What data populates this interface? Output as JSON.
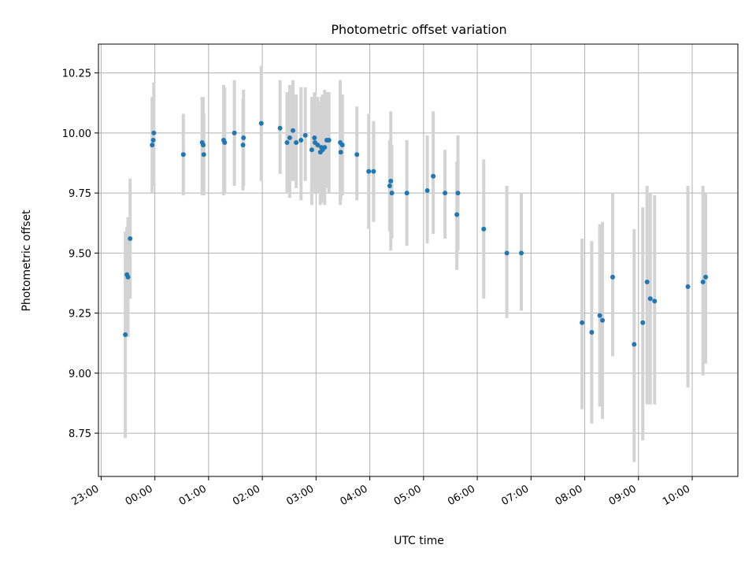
{
  "chart_data": {
    "type": "scatter",
    "title": "Photometric offset variation",
    "xlabel": "UTC time",
    "ylabel": "Photometric offset",
    "grid": true,
    "xlim": [
      -1.05,
      10.85
    ],
    "ylim": [
      8.57,
      10.37
    ],
    "x_ticks": [
      {
        "value": -1,
        "label": "23:00"
      },
      {
        "value": 0,
        "label": "00:00"
      },
      {
        "value": 1,
        "label": "01:00"
      },
      {
        "value": 2,
        "label": "02:00"
      },
      {
        "value": 3,
        "label": "03:00"
      },
      {
        "value": 4,
        "label": "04:00"
      },
      {
        "value": 5,
        "label": "05:00"
      },
      {
        "value": 6,
        "label": "06:00"
      },
      {
        "value": 7,
        "label": "07:00"
      },
      {
        "value": 8,
        "label": "08:00"
      },
      {
        "value": 9,
        "label": "09:00"
      },
      {
        "value": 10,
        "label": "10:00"
      }
    ],
    "y_ticks": [
      {
        "value": 8.75,
        "label": "8.75"
      },
      {
        "value": 9.0,
        "label": "9.00"
      },
      {
        "value": 9.25,
        "label": "9.25"
      },
      {
        "value": 9.5,
        "label": "9.50"
      },
      {
        "value": 9.75,
        "label": "9.75"
      },
      {
        "value": 10.0,
        "label": "10.00"
      },
      {
        "value": 10.25,
        "label": "10.25"
      }
    ],
    "colors": {
      "point": "#1f77b4",
      "errorbar": "#d3d3d3",
      "grid": "#b0b0b0"
    },
    "series": [
      {
        "x": [
          -0.55,
          -0.52,
          -0.5,
          -0.46,
          -0.05,
          -0.03,
          -0.02,
          0.53,
          0.88,
          0.9,
          0.91,
          1.28,
          1.3,
          1.48,
          1.64,
          1.65,
          1.98,
          2.33,
          2.46,
          2.51,
          2.57,
          2.63,
          2.72,
          2.8,
          2.92,
          2.97,
          2.98,
          3.03,
          3.08,
          3.1,
          3.12,
          3.16,
          3.2,
          3.24,
          3.45,
          3.46,
          3.49,
          3.76,
          3.98,
          4.07,
          4.37,
          4.39,
          4.41,
          4.69,
          5.07,
          5.18,
          5.4,
          5.62,
          5.64,
          6.12,
          6.55,
          6.82,
          7.95,
          8.13,
          8.28,
          8.33,
          8.52,
          8.92,
          9.08,
          9.16,
          9.22,
          9.3,
          9.92,
          10.2,
          10.25
        ],
        "y": [
          9.16,
          9.41,
          9.4,
          9.56,
          9.95,
          9.97,
          10.0,
          9.91,
          9.96,
          9.95,
          9.91,
          9.97,
          9.96,
          10.0,
          9.95,
          9.98,
          10.04,
          10.02,
          9.96,
          9.98,
          10.01,
          9.96,
          9.97,
          9.99,
          9.93,
          9.98,
          9.96,
          9.95,
          9.92,
          9.94,
          9.93,
          9.94,
          9.97,
          9.97,
          9.96,
          9.92,
          9.95,
          9.91,
          9.84,
          9.84,
          9.78,
          9.8,
          9.75,
          9.75,
          9.76,
          9.82,
          9.75,
          9.66,
          9.75,
          9.6,
          9.5,
          9.5,
          9.21,
          9.17,
          9.24,
          9.22,
          9.4,
          9.12,
          9.21,
          9.38,
          9.31,
          9.3,
          9.36,
          9.38,
          9.4
        ],
        "err_low": [
          8.73,
          9.21,
          9.15,
          9.31,
          9.75,
          9.8,
          9.78,
          9.74,
          9.74,
          9.75,
          9.74,
          9.74,
          9.75,
          9.78,
          9.76,
          9.78,
          9.8,
          9.83,
          9.75,
          9.73,
          9.8,
          9.77,
          9.72,
          9.8,
          9.7,
          9.78,
          9.75,
          9.75,
          9.7,
          9.72,
          9.71,
          9.7,
          9.77,
          9.75,
          9.7,
          9.72,
          9.74,
          9.72,
          9.6,
          9.63,
          9.59,
          9.51,
          9.56,
          9.53,
          9.54,
          9.58,
          9.56,
          9.43,
          9.51,
          9.31,
          9.23,
          9.26,
          8.85,
          8.79,
          8.86,
          8.81,
          9.07,
          8.63,
          8.72,
          8.87,
          8.87,
          8.87,
          8.94,
          8.99,
          9.04
        ],
        "err_high": [
          9.59,
          9.61,
          9.65,
          9.81,
          10.15,
          10.14,
          10.21,
          10.08,
          10.15,
          10.15,
          10.08,
          10.2,
          10.19,
          10.22,
          10.14,
          10.18,
          10.28,
          10.22,
          10.17,
          10.2,
          10.22,
          10.16,
          10.19,
          10.19,
          10.15,
          10.17,
          10.17,
          10.15,
          10.13,
          10.15,
          10.16,
          10.18,
          10.17,
          10.17,
          10.22,
          10.13,
          10.16,
          10.11,
          10.08,
          10.05,
          9.97,
          10.09,
          9.95,
          9.97,
          9.99,
          10.09,
          9.93,
          9.88,
          9.99,
          9.89,
          9.78,
          9.75,
          9.56,
          9.55,
          9.62,
          9.63,
          9.75,
          9.6,
          9.69,
          9.78,
          9.75,
          9.74,
          9.78,
          9.78,
          9.75
        ]
      }
    ]
  }
}
